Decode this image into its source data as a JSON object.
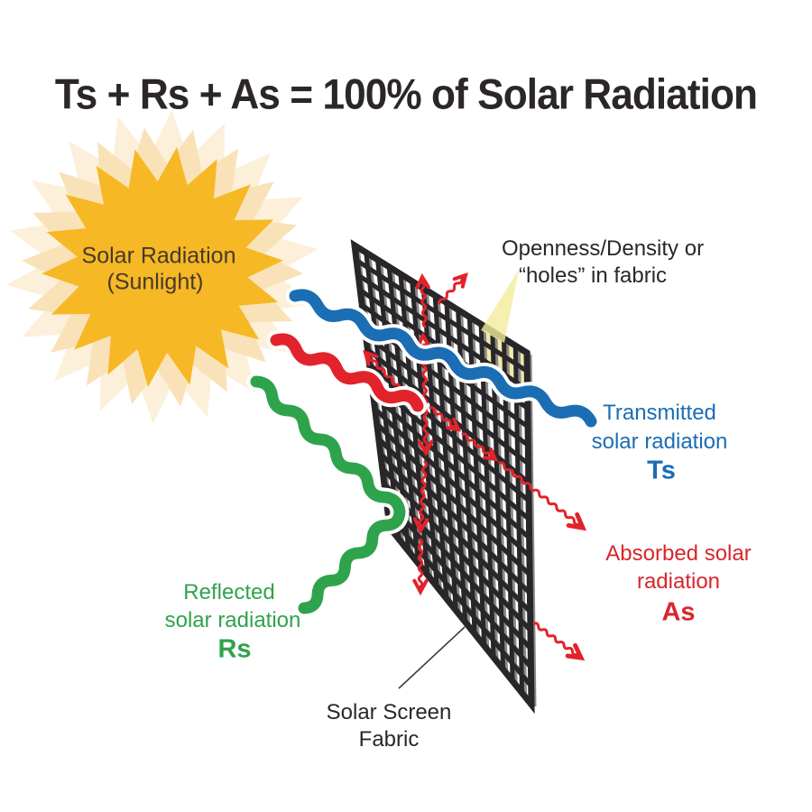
{
  "title": "Ts + Rs + As = 100% of Solar Radiation",
  "sun": {
    "line1": "Solar Radiation",
    "line2": "(Sunlight)"
  },
  "openness": {
    "line1": "Openness/Density or",
    "line2": "“holes” in fabric"
  },
  "transmitted": {
    "line1": "Transmitted",
    "line2": "solar radiation",
    "symbol": "Ts"
  },
  "absorbed": {
    "line1": "Absorbed solar",
    "line2": "radiation",
    "symbol": "As"
  },
  "reflected": {
    "line1": "Reflected",
    "line2": "solar radiation",
    "symbol": "Rs"
  },
  "fabric": {
    "line1": "Solar Screen",
    "line2": "Fabric"
  },
  "colors": {
    "transmitted_blue": "#1b6db4",
    "absorbed_red_label": "#d9252c",
    "arrow_red": "#e2232b",
    "reflected_green": "#2fa34c",
    "sun_gold": "#f6b825",
    "sun_glow_outer": "#fcf0da",
    "sun_glow_mid": "#f9e2b8",
    "grid_black": "#29262a",
    "grid_gray": "#8a8a8a",
    "beam_yellow": "#f3ec9b",
    "highlight_yellow": "#f1e9a6",
    "text_dark": "#2b2728",
    "sun_text": "#453a2a"
  }
}
